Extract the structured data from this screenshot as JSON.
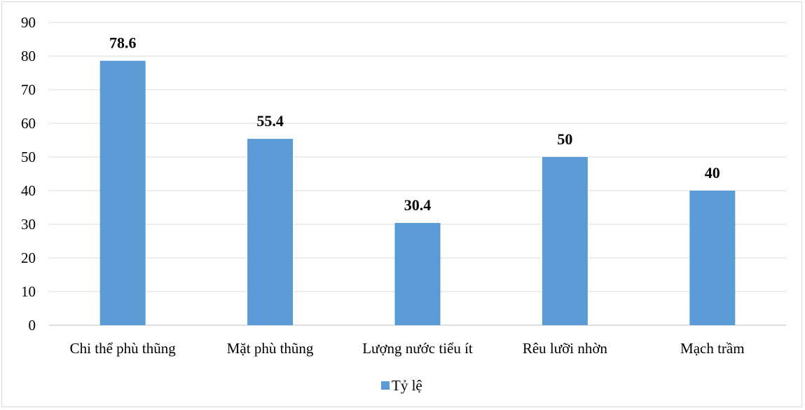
{
  "chart_data": {
    "type": "bar",
    "categories": [
      "Chi thể phù thũng",
      "Mặt phù thũng",
      "Lượng nước tiểu ít",
      "Rêu lưỡi nhờn",
      "Mạch trầm"
    ],
    "series": [
      {
        "name": "Tỷ lệ",
        "values": [
          78.6,
          55.4,
          30.4,
          50,
          40
        ]
      }
    ],
    "data_labels": [
      "78.6",
      "55.4",
      "30.4",
      "50",
      "40"
    ],
    "y_ticks": [
      "0",
      "10",
      "20",
      "30",
      "40",
      "50",
      "60",
      "70",
      "80",
      "90"
    ],
    "ylim": [
      0,
      90
    ],
    "grid": true,
    "legend_position": "bottom",
    "title": "",
    "xlabel": "",
    "ylabel": "",
    "colors": {
      "bar": "#5b9bd5",
      "grid": "#d9d9d9",
      "axis": "#bfbfbf"
    }
  }
}
